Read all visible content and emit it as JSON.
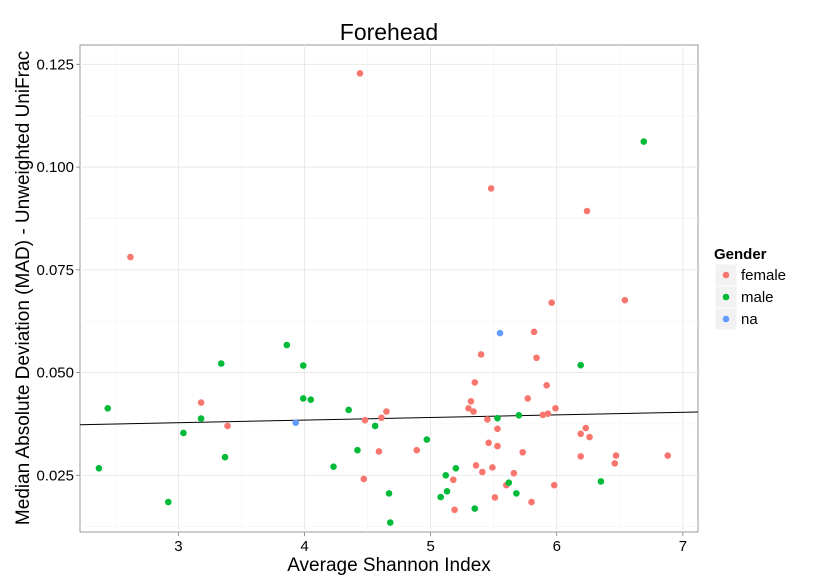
{
  "chart_data": {
    "type": "scatter",
    "title": "Forehead",
    "xlabel": "Average Shannon Index",
    "ylabel": "Median Absolute Deviation (MAD) - Unweighted UniFrac",
    "xlim": [
      2.22,
      7.12
    ],
    "ylim": [
      0.0112,
      0.1297
    ],
    "x_ticks": [
      3,
      4,
      5,
      6,
      7
    ],
    "x_tick_labels": [
      "3",
      "4",
      "5",
      "6",
      "7"
    ],
    "y_ticks": [
      0.025,
      0.05,
      0.075,
      0.1,
      0.125
    ],
    "y_tick_labels": [
      "0.025",
      "0.050",
      "0.075",
      "0.100",
      "0.125"
    ],
    "grid": true,
    "legend": {
      "title": "Gender",
      "position": "right"
    },
    "series": [
      {
        "name": "female",
        "color": "#F8766D",
        "points": [
          [
            2.62,
            0.0781
          ],
          [
            3.18,
            0.0427
          ],
          [
            3.39,
            0.037
          ],
          [
            4.44,
            0.1228
          ],
          [
            4.47,
            0.0241
          ],
          [
            4.48,
            0.0384
          ],
          [
            4.59,
            0.0308
          ],
          [
            4.61,
            0.039
          ],
          [
            4.65,
            0.0405
          ],
          [
            4.89,
            0.0311
          ],
          [
            5.18,
            0.0239
          ],
          [
            5.19,
            0.0166
          ],
          [
            5.3,
            0.0413
          ],
          [
            5.32,
            0.043
          ],
          [
            5.34,
            0.0405
          ],
          [
            5.35,
            0.0476
          ],
          [
            5.36,
            0.0274
          ],
          [
            5.4,
            0.0544
          ],
          [
            5.41,
            0.0258
          ],
          [
            5.45,
            0.0386
          ],
          [
            5.46,
            0.0329
          ],
          [
            5.48,
            0.0948
          ],
          [
            5.49,
            0.0269
          ],
          [
            5.51,
            0.0196
          ],
          [
            5.53,
            0.0363
          ],
          [
            5.53,
            0.0321
          ],
          [
            5.6,
            0.0226
          ],
          [
            5.66,
            0.0255
          ],
          [
            5.73,
            0.0306
          ],
          [
            5.77,
            0.0437
          ],
          [
            5.8,
            0.0185
          ],
          [
            5.82,
            0.0599
          ],
          [
            5.84,
            0.0536
          ],
          [
            5.89,
            0.0397
          ],
          [
            5.92,
            0.0469
          ],
          [
            5.93,
            0.04
          ],
          [
            5.96,
            0.067
          ],
          [
            5.98,
            0.0226
          ],
          [
            5.99,
            0.0413
          ],
          [
            6.19,
            0.0351
          ],
          [
            6.19,
            0.0296
          ],
          [
            6.23,
            0.0365
          ],
          [
            6.24,
            0.0893
          ],
          [
            6.26,
            0.0343
          ],
          [
            6.46,
            0.0279
          ],
          [
            6.47,
            0.0298
          ],
          [
            6.54,
            0.0676
          ],
          [
            6.88,
            0.0298
          ]
        ]
      },
      {
        "name": "male",
        "color": "#00BA38",
        "points": [
          [
            2.37,
            0.0267
          ],
          [
            2.44,
            0.0413
          ],
          [
            2.92,
            0.0185
          ],
          [
            3.04,
            0.0353
          ],
          [
            3.18,
            0.0388
          ],
          [
            3.34,
            0.0522
          ],
          [
            3.37,
            0.0294
          ],
          [
            3.86,
            0.0567
          ],
          [
            3.99,
            0.0517
          ],
          [
            3.99,
            0.0437
          ],
          [
            4.05,
            0.0434
          ],
          [
            4.23,
            0.0271
          ],
          [
            4.35,
            0.0409
          ],
          [
            4.42,
            0.0311
          ],
          [
            4.56,
            0.037
          ],
          [
            4.67,
            0.0206
          ],
          [
            4.68,
            0.0135
          ],
          [
            4.97,
            0.0337
          ],
          [
            5.08,
            0.0197
          ],
          [
            5.12,
            0.025
          ],
          [
            5.13,
            0.0211
          ],
          [
            5.2,
            0.0267
          ],
          [
            5.35,
            0.0169
          ],
          [
            5.53,
            0.0389
          ],
          [
            5.62,
            0.0232
          ],
          [
            5.68,
            0.0206
          ],
          [
            5.7,
            0.0396
          ],
          [
            6.19,
            0.0518
          ],
          [
            6.35,
            0.0235
          ],
          [
            6.69,
            0.1062
          ]
        ]
      },
      {
        "name": "na",
        "color": "#619CFF",
        "points": [
          [
            3.93,
            0.0378
          ],
          [
            5.55,
            0.0596
          ]
        ]
      }
    ],
    "trend_line": {
      "x": [
        2.22,
        7.12
      ],
      "y": [
        0.0373,
        0.0404
      ],
      "color": "#000000"
    }
  }
}
